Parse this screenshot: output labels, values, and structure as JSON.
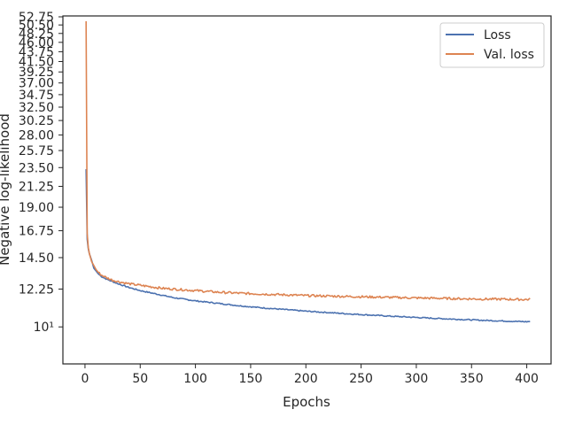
{
  "chart_data": {
    "type": "line",
    "title": "",
    "xlabel": "Epochs",
    "ylabel": "Negative log-likelihood",
    "xlim": [
      -20,
      422
    ],
    "ylim": [
      8.2,
      53
    ],
    "yscale": "log",
    "grid": false,
    "legend_position": "top-right",
    "x_ticks": [
      0,
      50,
      100,
      150,
      200,
      250,
      300,
      350,
      400
    ],
    "x_tick_labels": [
      "0",
      "50",
      "100",
      "150",
      "200",
      "250",
      "300",
      "350",
      "400"
    ],
    "y_ticks": [
      10,
      12.25,
      14.5,
      16.75,
      19.0,
      21.25,
      23.5,
      25.75,
      28.0,
      30.25,
      32.5,
      34.75,
      37.0,
      39.25,
      41.5,
      43.75,
      46.0,
      48.25,
      50.5,
      52.75
    ],
    "y_tick_labels": [
      "10¹",
      "12.25",
      "14.50",
      "16.75",
      "19.00",
      "21.25",
      "23.50",
      "25.75",
      "28.00",
      "30.25",
      "32.50",
      "34.75",
      "37.00",
      "39.25",
      "41.50",
      "43.75",
      "46.00",
      "48.25",
      "50.50",
      "52.75"
    ],
    "series": [
      {
        "name": "Loss",
        "color": "#4c72b0",
        "x": [
          1,
          2,
          3,
          4,
          6,
          8,
          10,
          12,
          15,
          20,
          25,
          30,
          40,
          50,
          60,
          70,
          80,
          90,
          100,
          120,
          140,
          160,
          180,
          200,
          220,
          240,
          260,
          280,
          300,
          320,
          340,
          360,
          380,
          400,
          403
        ],
        "y": [
          23.3,
          16.0,
          15.2,
          14.8,
          14.3,
          13.7,
          13.5,
          13.3,
          13.1,
          12.9,
          12.75,
          12.6,
          12.35,
          12.15,
          12.0,
          11.85,
          11.7,
          11.6,
          11.5,
          11.35,
          11.2,
          11.08,
          10.98,
          10.88,
          10.8,
          10.72,
          10.65,
          10.58,
          10.52,
          10.46,
          10.41,
          10.36,
          10.32,
          10.28,
          10.3
        ]
      },
      {
        "name": "Val. loss",
        "color": "#dd8452",
        "x": [
          1,
          2,
          3,
          4,
          6,
          8,
          10,
          12,
          15,
          20,
          25,
          30,
          40,
          50,
          60,
          70,
          80,
          90,
          100,
          120,
          140,
          160,
          180,
          200,
          220,
          240,
          260,
          280,
          300,
          320,
          340,
          360,
          380,
          400,
          403
        ],
        "y": [
          51.5,
          16.5,
          15.3,
          14.8,
          14.2,
          13.9,
          13.6,
          13.4,
          13.2,
          13.0,
          12.85,
          12.75,
          12.6,
          12.5,
          12.4,
          12.3,
          12.25,
          12.2,
          12.15,
          12.05,
          11.98,
          11.93,
          11.88,
          11.83,
          11.8,
          11.77,
          11.74,
          11.71,
          11.68,
          11.66,
          11.63,
          11.61,
          11.6,
          11.58,
          11.6
        ]
      }
    ]
  }
}
